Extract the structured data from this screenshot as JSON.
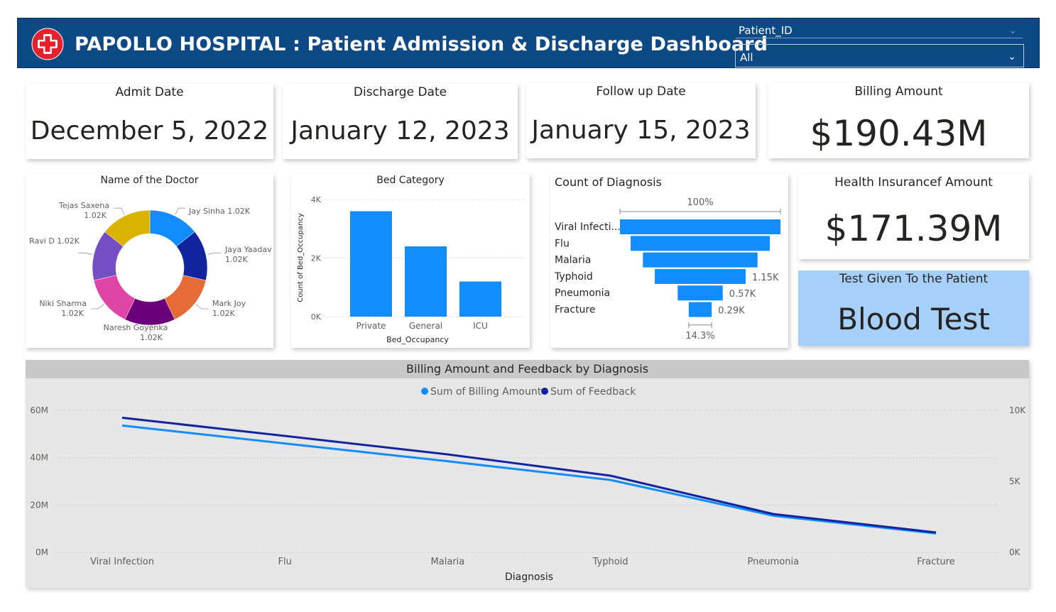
{
  "header": {
    "title": "PAPOLLO HOSPITAL : Patient Admission & Discharge Dashboard",
    "slicer_label": "Patient_ID",
    "slicer_value": "All",
    "bg_color": "#0d4a85",
    "logo_icon": "medical-cross-icon"
  },
  "kpis": {
    "admit": {
      "label": "Admit Date",
      "value": "December 5, 2022"
    },
    "discharge": {
      "label": "Discharge Date",
      "value": "January 12, 2023"
    },
    "followup": {
      "label": "Follow up Date",
      "value": "January 15, 2023"
    },
    "billing": {
      "label": "Billing Amount",
      "value": "$190.43M"
    },
    "insurance": {
      "label": "Health Insurancef Amount",
      "value": "$171.39M"
    },
    "test": {
      "label": "Test Given To the Patient",
      "value": "Blood Test",
      "bg_color": "#a6cff9"
    }
  },
  "chart_data": [
    {
      "type": "pie",
      "title": "Name of the Doctor",
      "donut": true,
      "slices": [
        {
          "name": "Jay Sinha",
          "label": "Jay Sinha 1.02K",
          "value": 1020,
          "color": "#118dff"
        },
        {
          "name": "Jaya Yaadav",
          "label": "Jaya Yaadav",
          "value_label": "1.02K",
          "value": 1020,
          "color": "#12239e"
        },
        {
          "name": "Mark Joy",
          "label": "Mark Joy",
          "value_label": "1.02K",
          "value": 1020,
          "color": "#e66c37"
        },
        {
          "name": "Naresh Goyenka",
          "label": "Naresh Goyenka",
          "value_label": "1.02K",
          "value": 1020,
          "color": "#6b007b"
        },
        {
          "name": "Niki Sharma",
          "label": "Niki Sharma",
          "value_label": "1.02K",
          "value": 1020,
          "color": "#e044a7"
        },
        {
          "name": "Ravi D",
          "label": "Ravi D 1.02K",
          "value": 1020,
          "color": "#744ec2"
        },
        {
          "name": "Tejas Saxena",
          "label": "Tejas Saxena",
          "value_label": "1.02K",
          "value": 1020,
          "color": "#d9b300"
        }
      ]
    },
    {
      "type": "bar",
      "title": "Bed Category",
      "categories": [
        "Private",
        "General",
        "ICU"
      ],
      "values": [
        3600,
        2400,
        1200
      ],
      "xlabel": "Bed_Occupancy",
      "ylabel": "Count of Bed_Occupancy",
      "ylim": [
        0,
        4000
      ],
      "yticks": [
        "0K",
        "2K",
        "4K"
      ],
      "color": "#118dff",
      "grid": true
    },
    {
      "type": "bar",
      "orientation": "funnel",
      "title": "Count of Diagnosis",
      "categories": [
        "Viral Infecti...",
        "Flu",
        "Malaria",
        "Typhoid",
        "Pneumonia",
        "Fracture"
      ],
      "values": [
        2030,
        1760,
        1450,
        1150,
        570,
        290
      ],
      "data_labels": [
        "",
        "",
        "",
        "1.15K",
        "0.57K",
        "0.29K"
      ],
      "top_percent": "100%",
      "bottom_percent": "14.3%",
      "color": "#118dff"
    },
    {
      "type": "line",
      "title": "Billing Amount and Feedback by Diagnosis",
      "x": [
        "Viral Infection",
        "Flu",
        "Malaria",
        "Typhoid",
        "Pneumonia",
        "Fracture"
      ],
      "xlabel": "Diagnosis",
      "legend_position": "top-center",
      "grid": true,
      "series": [
        {
          "name": "Sum of Billing Amount",
          "values": [
            53600000,
            46000000,
            38500000,
            30600000,
            15500000,
            8000000
          ],
          "axis": "left",
          "color": "#118dff"
        },
        {
          "name": "Sum of Feedback",
          "values": [
            9480,
            8200,
            6900,
            5400,
            2700,
            1400
          ],
          "axis": "right",
          "color": "#12239e"
        }
      ],
      "y_left": {
        "range": [
          0,
          60000000
        ],
        "ticks": [
          "0M",
          "20M",
          "40M",
          "60M"
        ]
      },
      "y_right": {
        "range": [
          0,
          10000
        ],
        "ticks": [
          "0K",
          "5K",
          "10K"
        ]
      },
      "background": "#e6e6e6",
      "title_bar_color": "#c8c8c8"
    }
  ]
}
